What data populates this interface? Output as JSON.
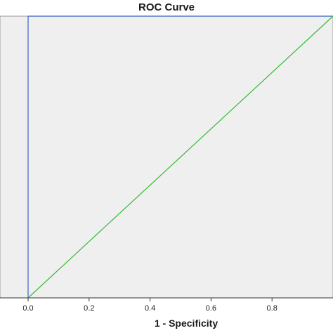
{
  "chart_data": {
    "type": "line",
    "title": "ROC Curve",
    "xlabel": "1 - Specificity",
    "ylabel": "",
    "xlim": [
      0,
      1
    ],
    "ylim": [
      0,
      1
    ],
    "x_ticks": [
      "0.0",
      "0.2",
      "0.4",
      "0.6",
      "0.8"
    ],
    "series": [
      {
        "x": [
          0,
          0,
          1
        ],
        "y": [
          0,
          1,
          1
        ],
        "color": "#3a62c2"
      },
      {
        "x": [
          0,
          1
        ],
        "y": [
          0,
          1
        ],
        "color": "#33bb33"
      }
    ],
    "grid": false,
    "plot_background": "#efefef"
  }
}
